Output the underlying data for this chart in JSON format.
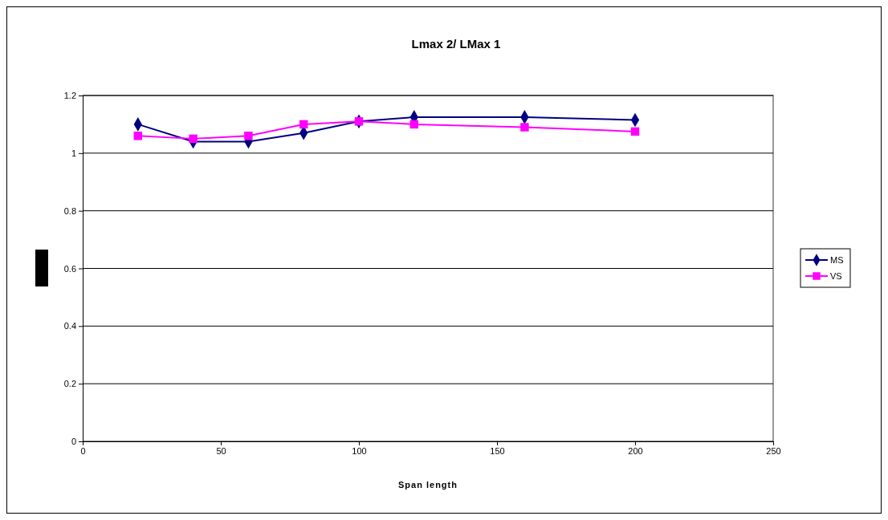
{
  "chart_data": {
    "type": "line",
    "title": "Lmax 2/ LMax 1",
    "xlabel": "Span length",
    "x": [
      20,
      40,
      60,
      80,
      100,
      120,
      160,
      200
    ],
    "series": [
      {
        "name": "MS",
        "color": "#000080",
        "marker": "diamond",
        "values": [
          1.1,
          1.04,
          1.04,
          1.07,
          1.11,
          1.125,
          1.125,
          1.115
        ]
      },
      {
        "name": "VS",
        "color": "#ff00ff",
        "marker": "square",
        "values": [
          1.06,
          1.05,
          1.06,
          1.1,
          1.11,
          1.1,
          1.09,
          1.075
        ]
      }
    ],
    "xlim": [
      0,
      250
    ],
    "xticks": [
      0,
      50,
      100,
      150,
      200,
      250
    ],
    "ylim": [
      0,
      1.2
    ],
    "yticks": [
      0,
      0.2,
      0.4,
      0.6,
      0.8,
      1,
      1.2
    ],
    "grid": "y",
    "legend": "right",
    "line_style": "solid"
  }
}
